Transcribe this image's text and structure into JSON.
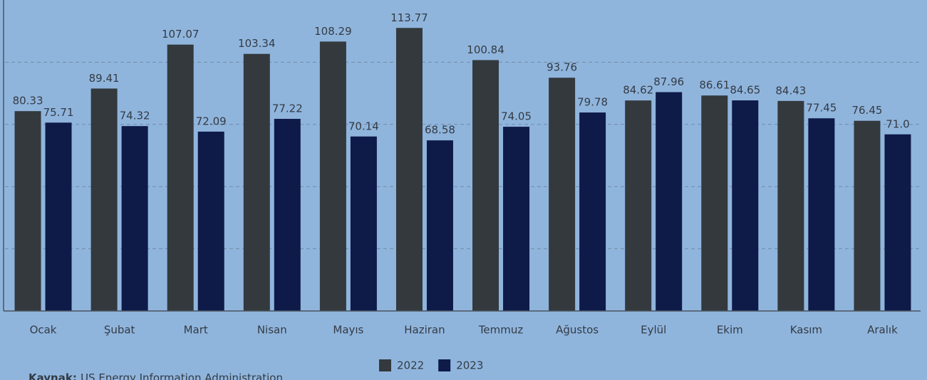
{
  "chart_data": {
    "type": "bar",
    "categories": [
      "Ocak",
      "Şubat",
      "Mart",
      "Nisan",
      "Mayıs",
      "Haziran",
      "Temmuz",
      "Ağustos",
      "Eylül",
      "Ekim",
      "Kasım",
      "Aralık"
    ],
    "series": [
      {
        "name": "2022",
        "color": "#33393d",
        "values": [
          80.33,
          89.41,
          107.07,
          103.34,
          108.29,
          113.77,
          100.84,
          93.76,
          84.62,
          86.61,
          84.43,
          76.45
        ]
      },
      {
        "name": "2023",
        "color": "#0e1a48",
        "values": [
          75.71,
          74.32,
          72.09,
          77.22,
          70.14,
          68.58,
          74.05,
          79.78,
          87.96,
          84.65,
          77.45,
          71.0
        ],
        "value_labels": [
          "75.71",
          "74.32",
          "72.09",
          "77.22",
          "70.14",
          "68.58",
          "74.05",
          "79.78",
          "87.96",
          "84.65",
          "77.45",
          "71.0"
        ]
      }
    ],
    "ylim": [
      0,
      125
    ],
    "yticks": [
      25,
      50,
      75,
      100
    ],
    "grid": true,
    "source_label": "Kaynak:",
    "source": "US Energy Information Administration"
  }
}
